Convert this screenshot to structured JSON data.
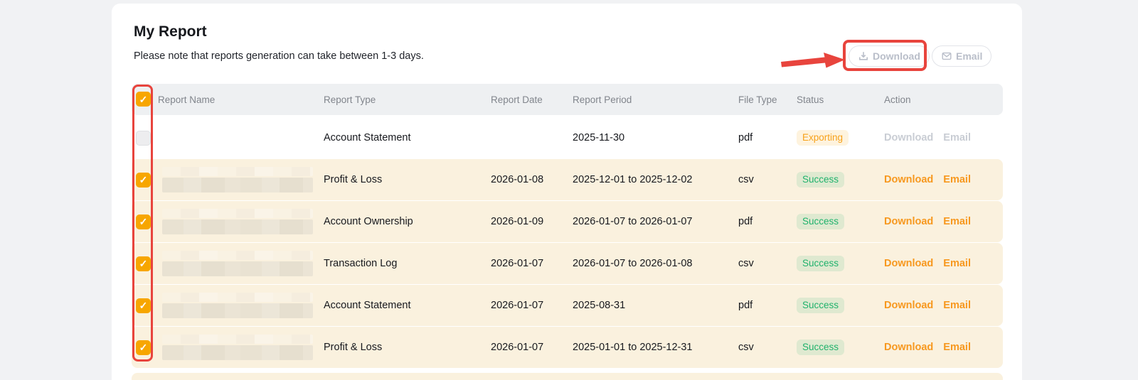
{
  "page": {
    "title": "My Report",
    "subtitle": "Please note that reports generation can take between 1-3 days."
  },
  "toolbar": {
    "download_label": "Download",
    "email_label": "Email",
    "download_icon": "download-icon",
    "email_icon": "email-icon",
    "enabled": false
  },
  "table": {
    "columns": [
      "Report Name",
      "Report Type",
      "Report Date",
      "Report Period",
      "File Type",
      "Status",
      "Action"
    ],
    "header_checkbox_checked": true,
    "actions": {
      "download": "Download",
      "email": "Email"
    },
    "rows": [
      {
        "checked": false,
        "name_redacted": false,
        "type": "Account Statement",
        "date": "",
        "period": "2025-11-30",
        "file_type": "pdf",
        "status": "Exporting",
        "enabled": false
      },
      {
        "checked": true,
        "name_redacted": true,
        "type": "Profit & Loss",
        "date": "2026-01-08",
        "period": "2025-12-01 to 2025-12-02",
        "file_type": "csv",
        "status": "Success",
        "enabled": true
      },
      {
        "checked": true,
        "name_redacted": true,
        "type": "Account Ownership",
        "date": "2026-01-09",
        "period": "2026-01-07 to 2026-01-07",
        "file_type": "pdf",
        "status": "Success",
        "enabled": true
      },
      {
        "checked": true,
        "name_redacted": true,
        "type": "Transaction Log",
        "date": "2026-01-07",
        "period": "2026-01-07 to 2026-01-08",
        "file_type": "csv",
        "status": "Success",
        "enabled": true
      },
      {
        "checked": true,
        "name_redacted": true,
        "type": "Account Statement",
        "date": "2026-01-07",
        "period": "2025-08-31",
        "file_type": "pdf",
        "status": "Success",
        "enabled": true
      },
      {
        "checked": true,
        "name_redacted": true,
        "type": "Profit & Loss",
        "date": "2026-01-07",
        "period": "2025-01-01 to 2025-12-31",
        "file_type": "csv",
        "status": "Success",
        "enabled": true
      }
    ]
  },
  "colors": {
    "accent_orange": "#f7a600",
    "link_orange": "#f7981e",
    "success_green": "#20b26c",
    "exporting_orange": "#f7a11a",
    "annotation_red": "#e8443d",
    "selected_row_bg": "#faf1de",
    "header_bg": "#eef0f2",
    "page_bg": "#f1f2f4"
  }
}
